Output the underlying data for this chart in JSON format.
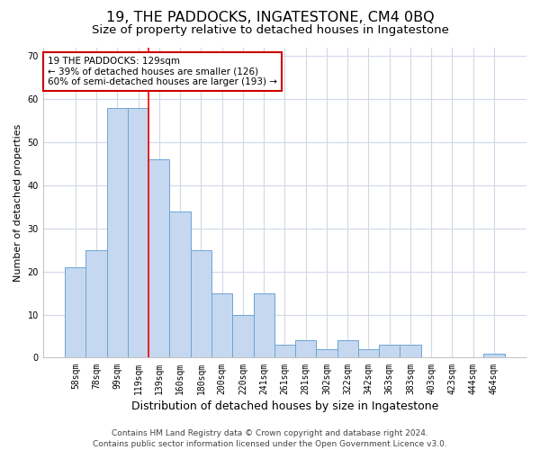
{
  "title": "19, THE PADDOCKS, INGATESTONE, CM4 0BQ",
  "subtitle": "Size of property relative to detached houses in Ingatestone",
  "xlabel": "Distribution of detached houses by size in Ingatestone",
  "ylabel": "Number of detached properties",
  "categories": [
    "58sqm",
    "78sqm",
    "99sqm",
    "119sqm",
    "139sqm",
    "160sqm",
    "180sqm",
    "200sqm",
    "220sqm",
    "241sqm",
    "261sqm",
    "281sqm",
    "302sqm",
    "322sqm",
    "342sqm",
    "363sqm",
    "383sqm",
    "403sqm",
    "423sqm",
    "444sqm",
    "464sqm"
  ],
  "values": [
    21,
    25,
    58,
    58,
    46,
    34,
    25,
    15,
    10,
    15,
    3,
    4,
    2,
    4,
    2,
    3,
    3,
    0,
    0,
    0,
    1
  ],
  "bar_color": "#c5d8f0",
  "bar_edge_color": "#6da4d4",
  "red_line_index": 3,
  "annotation_line1": "19 THE PADDOCKS: 129sqm",
  "annotation_line2": "← 39% of detached houses are smaller (126)",
  "annotation_line3": "60% of semi-detached houses are larger (193) →",
  "annotation_box_color": "#ffffff",
  "annotation_box_edge_color": "#cc0000",
  "ylim": [
    0,
    72
  ],
  "yticks": [
    0,
    10,
    20,
    30,
    40,
    50,
    60,
    70
  ],
  "footer_line1": "Contains HM Land Registry data © Crown copyright and database right 2024.",
  "footer_line2": "Contains public sector information licensed under the Open Government Licence v3.0.",
  "background_color": "#ffffff",
  "plot_bg_color": "#ffffff",
  "grid_color": "#d0d8e8",
  "title_fontsize": 11.5,
  "subtitle_fontsize": 9.5,
  "xlabel_fontsize": 9,
  "ylabel_fontsize": 8,
  "tick_fontsize": 7,
  "annotation_fontsize": 7.5,
  "footer_fontsize": 6.5
}
